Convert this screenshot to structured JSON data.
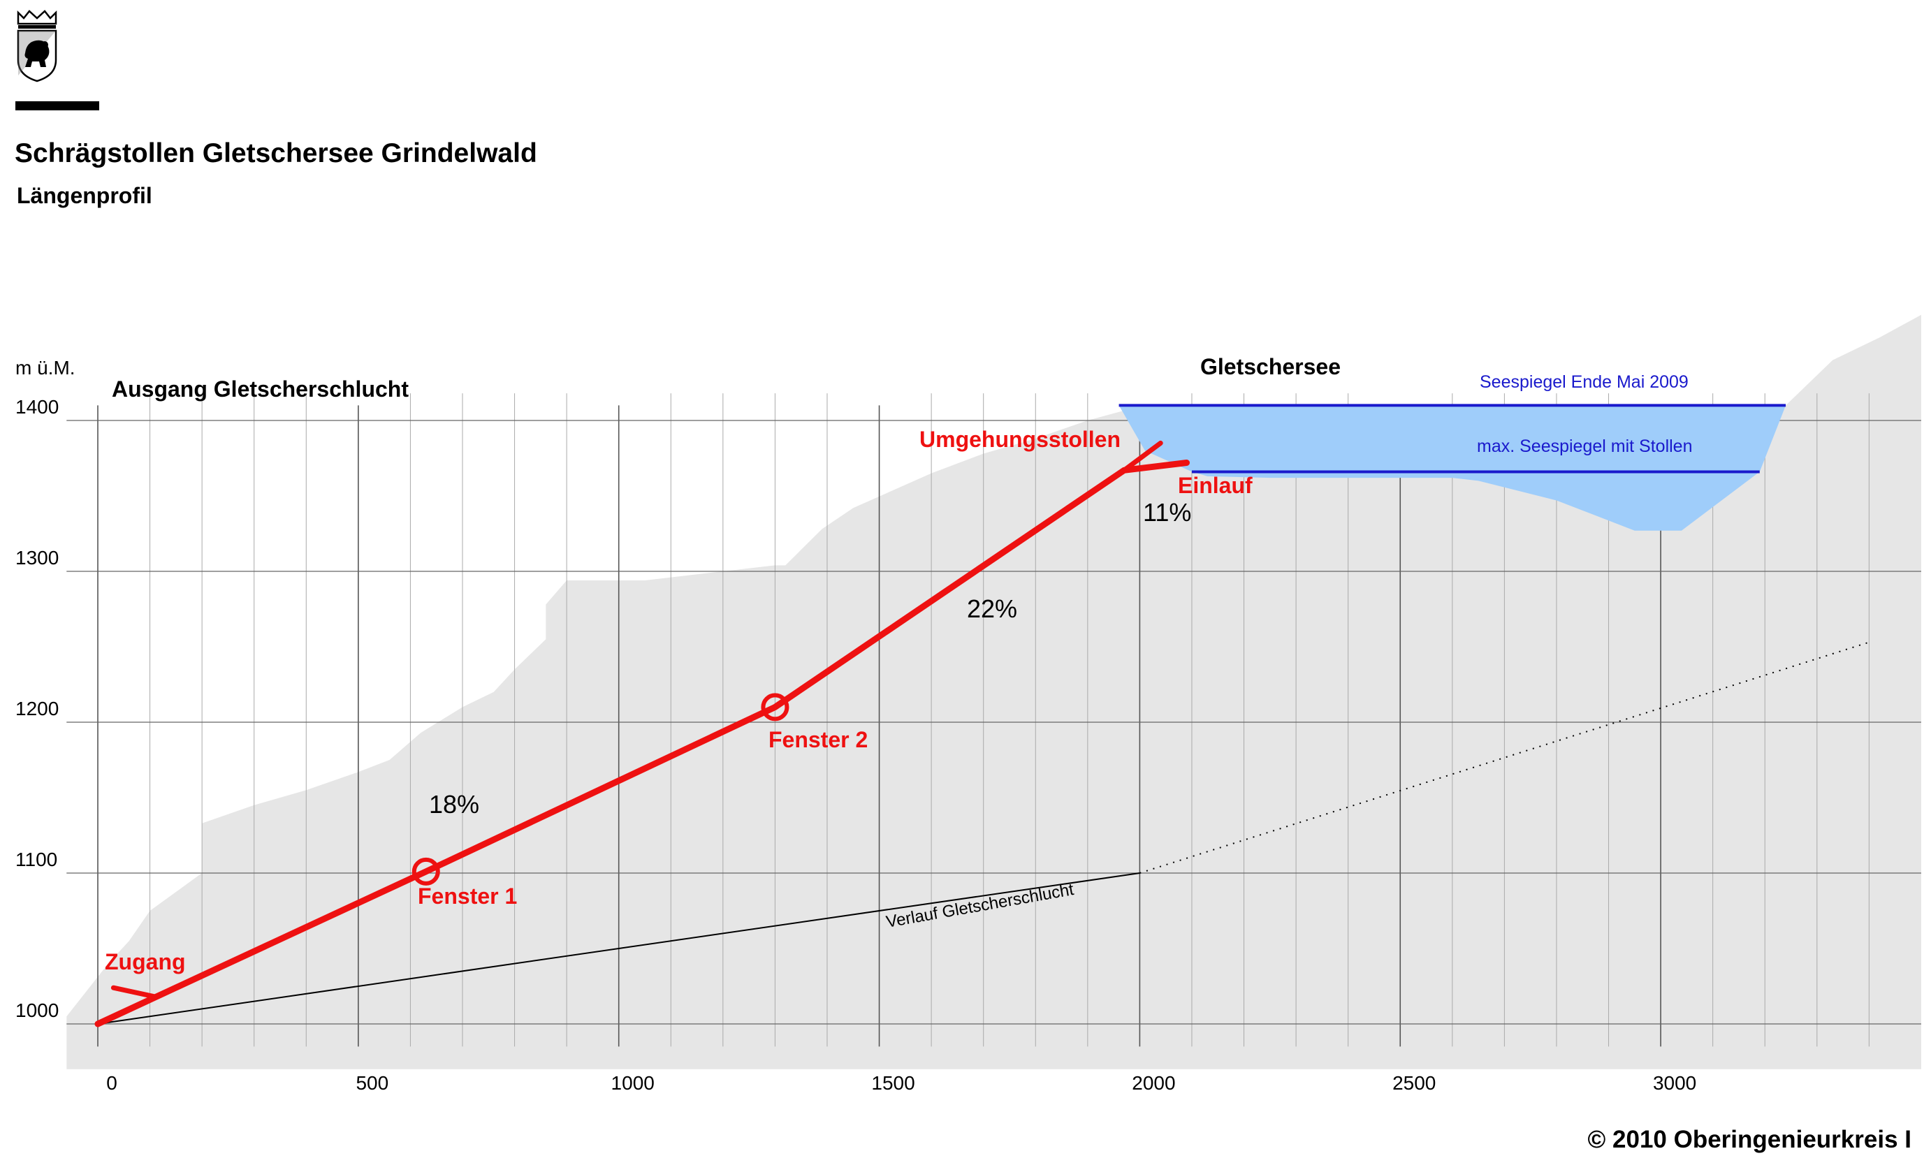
{
  "title": "Schrägstollen Gletschersee Grindelwald",
  "subtitle": "Längenprofil",
  "footer": "© 2010 Oberingenieurkreis I",
  "logo": {
    "name": "bern-coat-of-arms",
    "description": "emblem"
  },
  "colors": {
    "terrain": "#e6e6e6",
    "lake": "#9fcdfa",
    "lake_line": "#1a1acc",
    "tunnel": "#ee1111",
    "grid": "#888888",
    "text": "#000000"
  },
  "chart_data": {
    "type": "line",
    "ylabel": "m ü.M.",
    "xlim": [
      0,
      3400
    ],
    "ylim": [
      1000,
      1400
    ],
    "x_ticks": [
      "0",
      "500",
      "1000",
      "1500",
      "2000",
      "2500",
      "3000"
    ],
    "y_ticks": [
      "1000",
      "1100",
      "1200",
      "1300",
      "1400"
    ],
    "annotations": {
      "ausgang": "Ausgang Gletscherschlucht",
      "gletschersee": "Gletschersee",
      "seespiegel_2009": "Seespiegel Ende Mai 2009",
      "seespiegel_max": "max. Seespiegel mit Stollen",
      "umgehungsstollen": "Umgehungsstollen",
      "einlauf": "Einlauf",
      "zugang": "Zugang",
      "fenster1": "Fenster 1",
      "fenster2": "Fenster 2",
      "verlauf": "Verlauf Gletscherschlucht",
      "gradient_lower": "18%",
      "gradient_middle": "22%",
      "gradient_upper": "11%"
    },
    "terrain": [
      [
        -60,
        985
      ],
      [
        -60,
        1005
      ],
      [
        20,
        1040
      ],
      [
        60,
        1055
      ],
      [
        100,
        1075
      ],
      [
        200,
        1100
      ],
      [
        200,
        1133
      ],
      [
        300,
        1145
      ],
      [
        400,
        1155
      ],
      [
        500,
        1167
      ],
      [
        560,
        1175
      ],
      [
        620,
        1193
      ],
      [
        700,
        1210
      ],
      [
        760,
        1220
      ],
      [
        800,
        1235
      ],
      [
        860,
        1255
      ],
      [
        860,
        1278
      ],
      [
        900,
        1294
      ],
      [
        1000,
        1294
      ],
      [
        1050,
        1294
      ],
      [
        1100,
        1296
      ],
      [
        1200,
        1300
      ],
      [
        1300,
        1304
      ],
      [
        1320,
        1304
      ],
      [
        1390,
        1328
      ],
      [
        1450,
        1342
      ],
      [
        1600,
        1365
      ],
      [
        1700,
        1378
      ],
      [
        1800,
        1388
      ],
      [
        1900,
        1400
      ],
      [
        1985,
        1408
      ],
      [
        3240,
        1410
      ],
      [
        3330,
        1440
      ],
      [
        3420,
        1455
      ],
      [
        3500,
        1470
      ],
      [
        3500,
        970
      ],
      [
        -60,
        970
      ]
    ],
    "lake": {
      "level_2009": 1410,
      "level_max": 1366,
      "outline": [
        [
          1960,
          1410
        ],
        [
          3240,
          1410
        ],
        [
          3190,
          1366
        ],
        [
          3040,
          1327
        ],
        [
          2950,
          1327
        ],
        [
          2800,
          1347
        ],
        [
          2650,
          1360
        ],
        [
          2600,
          1362
        ],
        [
          2250,
          1362
        ],
        [
          2130,
          1363
        ],
        [
          2100,
          1366
        ],
        [
          2010,
          1380
        ],
        [
          1960,
          1410
        ]
      ],
      "line_2009": [
        [
          1960,
          3240
        ]
      ],
      "line_max": [
        [
          2100,
          3190
        ]
      ]
    },
    "series": [
      {
        "name": "Schrägstollen",
        "points": [
          [
            0,
            1000
          ],
          [
            630,
            1101
          ],
          [
            1300,
            1210
          ],
          [
            1970,
            1367
          ],
          [
            2090,
            1372
          ]
        ]
      },
      {
        "name": "Umgehungsstollen",
        "points": [
          [
            1970,
            1367
          ],
          [
            2040,
            1385
          ]
        ]
      },
      {
        "name": "Zugang",
        "points": [
          [
            110,
            1018
          ],
          [
            30,
            1024
          ]
        ]
      },
      {
        "name": "Verlauf Gletscherschlucht",
        "points": [
          [
            0,
            1000
          ],
          [
            2000,
            1100
          ]
        ]
      },
      {
        "name": "Verlauf Gletscherschlucht (dotted)",
        "points": [
          [
            2000,
            1100
          ],
          [
            3400,
            1253
          ]
        ]
      }
    ],
    "windows": [
      [
        630,
        1101
      ],
      [
        1300,
        1210
      ]
    ]
  }
}
